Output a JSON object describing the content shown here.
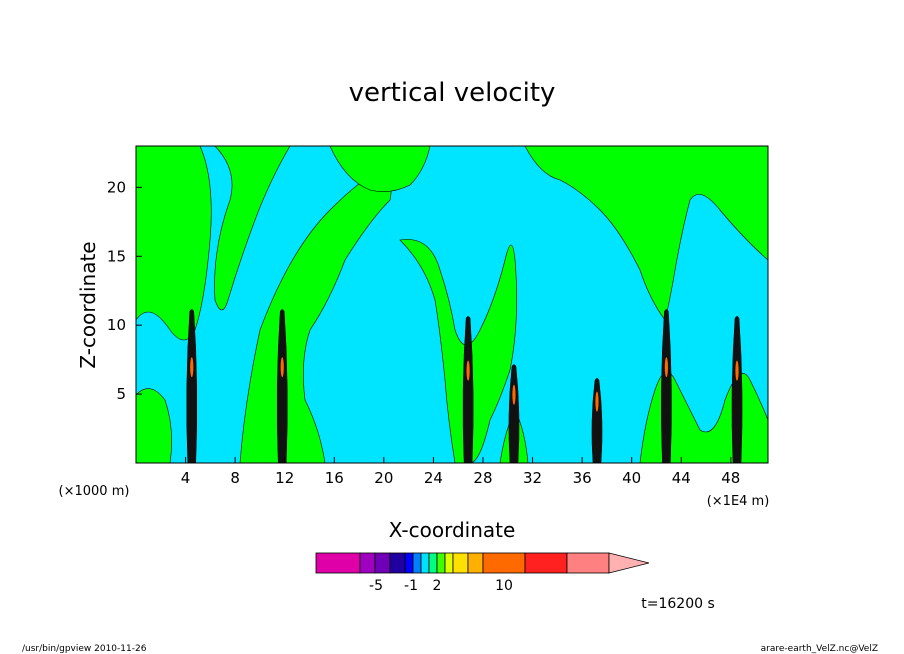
{
  "chart_data": {
    "type": "heatmap",
    "title": "vertical velocity",
    "xlabel": "X-coordinate",
    "ylabel": "Z-coordinate",
    "x_unit_left": "(×1000 m)",
    "x_unit_right": "(×1E4 m)",
    "xlim": [
      0,
      51
    ],
    "ylim": [
      0,
      23
    ],
    "x_ticks": [
      4,
      8,
      12,
      16,
      20,
      24,
      28,
      32,
      36,
      40,
      44,
      48
    ],
    "y_ticks": [
      5,
      10,
      15,
      20
    ],
    "time_label": "t=16200 s",
    "colorbar": {
      "colors": [
        "#e000a8",
        "#a000c0",
        "#7000b8",
        "#2000a0",
        "#0000ff",
        "#0080ff",
        "#00e0ff",
        "#00ff80",
        "#40ff00",
        "#e0ff00",
        "#ffe000",
        "#ffb000",
        "#ff6a00",
        "#ff2020",
        "#ff8080",
        "#ffb0b0"
      ],
      "tick_labels": [
        "-5",
        "-1",
        "2",
        "10"
      ]
    },
    "updraft_cores_x": [
      4.5,
      11.8,
      26.8,
      30.5,
      37.2,
      42.8,
      48.5
    ],
    "background_color": "#00e5ff",
    "region_color": "#00ff00"
  },
  "footer": {
    "left": "/usr/bin/gpview   2010-11-26",
    "right": "arare-earth_VelZ.nc@VelZ"
  }
}
